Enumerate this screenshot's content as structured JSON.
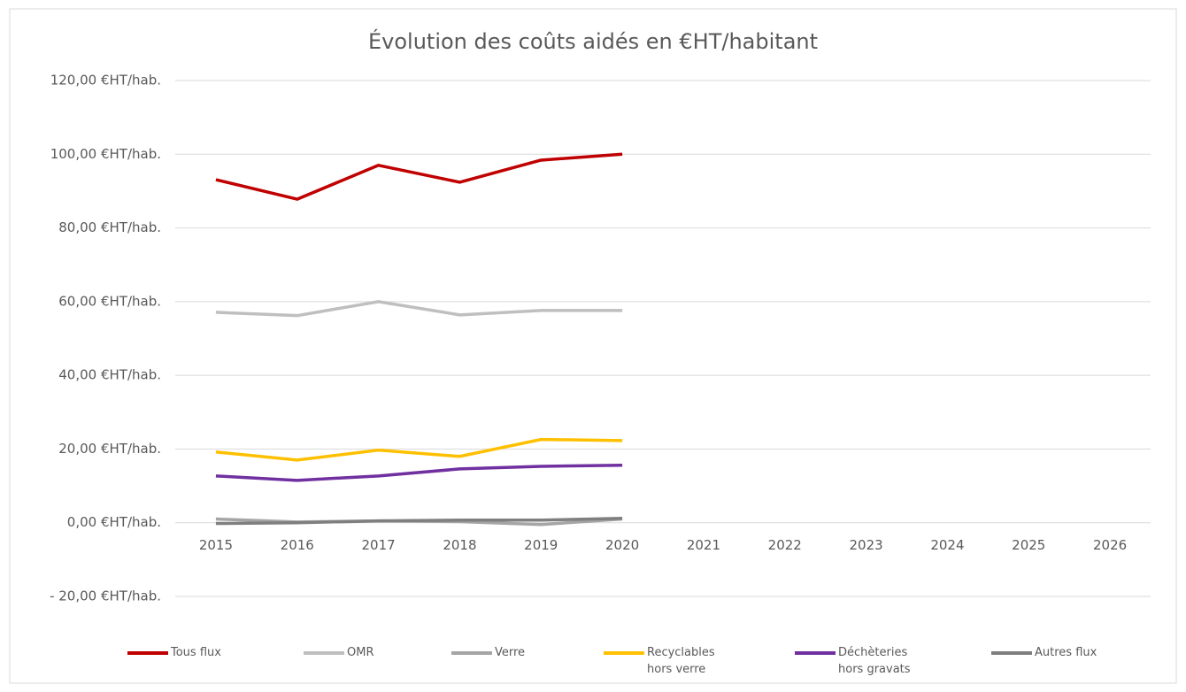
{
  "chart_data": {
    "type": "line",
    "title": "Évolution des coûts aidés en €HT/habitant",
    "categories": [
      "2015",
      "2016",
      "2017",
      "2018",
      "2019",
      "2020",
      "2021",
      "2022",
      "2023",
      "2024",
      "2025",
      "2026"
    ],
    "series": [
      {
        "name": "Tous flux",
        "color": "#c00000",
        "values": [
          93.1,
          87.8,
          97,
          92.4,
          98.4,
          100,
          null,
          null,
          null,
          null,
          null,
          null
        ]
      },
      {
        "name": "OMR",
        "color": "#bfbfbf",
        "values": [
          57.1,
          56.2,
          60,
          56.4,
          57.6,
          57.6,
          null,
          null,
          null,
          null,
          null,
          null
        ]
      },
      {
        "name": "Verre",
        "color": "#a5a5a5",
        "values": [
          1,
          0.2,
          0.5,
          0.3,
          -0.5,
          1,
          null,
          null,
          null,
          null,
          null,
          null
        ]
      },
      {
        "name": "Recyclables hors verre",
        "color": "#ffc000",
        "values": [
          19.2,
          17,
          19.7,
          18,
          22.6,
          22.3,
          null,
          null,
          null,
          null,
          null,
          null
        ]
      },
      {
        "name": "Déchèteries hors gravats",
        "color": "#7030a0",
        "values": [
          12.7,
          11.5,
          12.7,
          14.6,
          15.3,
          15.6,
          null,
          null,
          null,
          null,
          null,
          null
        ]
      },
      {
        "name": "Autres flux",
        "color": "#7f7f7f",
        "values": [
          -0.2,
          0,
          0.5,
          0.7,
          0.7,
          1.2,
          null,
          null,
          null,
          null,
          null,
          null
        ]
      }
    ],
    "ylim": [
      -20,
      120
    ],
    "yticks": [
      {
        "value": -20,
        "label": "- 20,00 €HT/hab."
      },
      {
        "value": 0,
        "label": "0,00 €HT/hab."
      },
      {
        "value": 20,
        "label": "20,00 €HT/hab."
      },
      {
        "value": 40,
        "label": "40,00 €HT/hab."
      },
      {
        "value": 60,
        "label": "60,00 €HT/hab."
      },
      {
        "value": 80,
        "label": "80,00 €HT/hab."
      },
      {
        "value": 100,
        "label": "100,00 €HT/hab."
      },
      {
        "value": 120,
        "label": "120,00 €HT/hab."
      }
    ],
    "grid": true,
    "legend": "bottom"
  }
}
